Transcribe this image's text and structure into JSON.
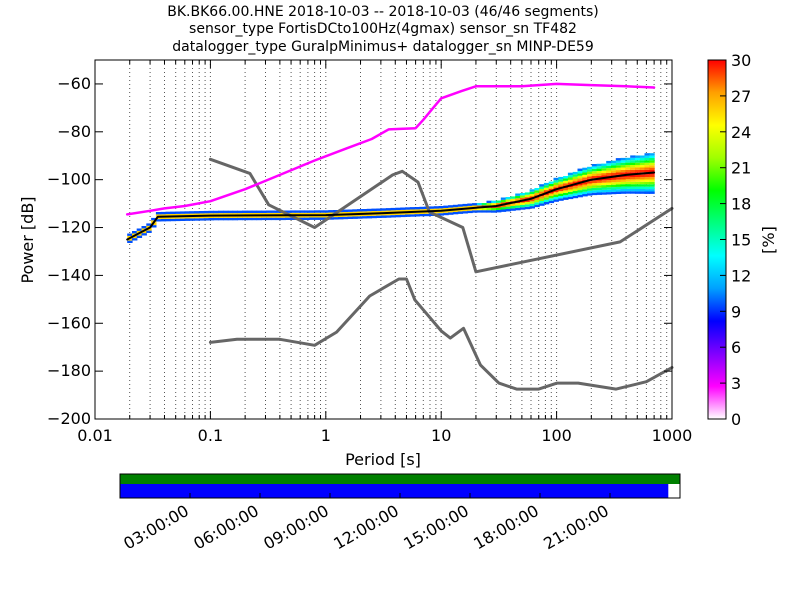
{
  "title_lines": [
    "BK.BK66.00.HNE   2018-10-03 -- 2018-10-03  (46/46 segments)",
    "sensor_type FortisDCto100Hz(4gmax) sensor_sn TF482",
    "datalogger_type GuralpMinimus+ datalogger_sn MINP-DE59"
  ],
  "chart_data": [
    {
      "type": "heatmap",
      "xlabel": "Period [s]",
      "ylabel": "Power [dB]",
      "xscale": "log",
      "xlim": [
        0.01,
        1000
      ],
      "ylim": [
        -200,
        -50
      ],
      "x_tick_labels": [
        "0.01",
        "0.1",
        "1",
        "10",
        "100",
        "1000"
      ],
      "x_tick_values": [
        0.01,
        0.1,
        1,
        10,
        100,
        1000
      ],
      "y_tick_values": [
        -60,
        -80,
        -100,
        -120,
        -140,
        -160,
        -180,
        -200
      ],
      "y_tick_labels": [
        "−60",
        "−80",
        "−100",
        "−120",
        "−140",
        "−160",
        "−180",
        "−200"
      ],
      "grid": "dotted vertical lines at minor log ticks",
      "colorbar": {
        "label": "[%]",
        "range": [
          0,
          30
        ],
        "ticks": [
          "0",
          "3",
          "6",
          "9",
          "12",
          "15",
          "18",
          "21",
          "24",
          "27",
          "30"
        ],
        "colormap": [
          "#ffffff",
          "#ff00ff",
          "#8000ff",
          "#0000ff",
          "#00a0ff",
          "#00ffff",
          "#00ff80",
          "#00ff00",
          "#a0ff00",
          "#ffff00",
          "#ffa000",
          "#ff0000"
        ]
      },
      "series": [
        {
          "role": "noise model upper",
          "color": "#666666",
          "x": [
            0.1,
            0.22,
            0.32,
            0.8,
            3.8,
            4.6,
            6.3,
            7.9,
            15.4,
            20,
            354.8,
            1000
          ],
          "y": [
            -91.5,
            -97.4,
            -110.5,
            -120,
            -98,
            -96.5,
            -101,
            -113.5,
            -120,
            -138.5,
            -126,
            -112
          ]
        },
        {
          "role": "noise model lower",
          "color": "#666666",
          "x": [
            0.1,
            0.17,
            0.4,
            0.8,
            1.24,
            2.4,
            4.3,
            5,
            5.9,
            10,
            12,
            15.6,
            21.9,
            31.6,
            45,
            70,
            101,
            154,
            328,
            600,
            1000
          ],
          "y": [
            -168,
            -166.7,
            -166.7,
            -169.2,
            -163.7,
            -148.6,
            -141.5,
            -141.5,
            -150.2,
            -163.2,
            -166.2,
            -162.1,
            -177.5,
            -185,
            -187.5,
            -187.5,
            -185,
            -185,
            -187.5,
            -184.4,
            -178.5
          ]
        },
        {
          "role": "PSD mode",
          "color": "#000000",
          "x": [
            0.019,
            0.025,
            0.03,
            0.035,
            0.1,
            1,
            3,
            10,
            30,
            60,
            100,
            200,
            400,
            700
          ],
          "y": [
            -125,
            -122,
            -120,
            -115.5,
            -115,
            -114.8,
            -114,
            -113,
            -111,
            -108,
            -104,
            -100,
            -98,
            -97
          ]
        },
        {
          "role": "PSD maximum",
          "color": "#ff00ff",
          "x": [
            0.019,
            0.03,
            0.04,
            0.06,
            0.1,
            0.2,
            0.4,
            0.8,
            1.5,
            2.5,
            3.5,
            6,
            7,
            8.5,
            10,
            15,
            20,
            50,
            100,
            200,
            400,
            700
          ],
          "y": [
            -114.5,
            -113,
            -112,
            -111,
            -109,
            -104,
            -98,
            -92,
            -87,
            -83,
            -79,
            -78.5,
            -75,
            -70,
            -66,
            -63,
            -61,
            -61,
            -60,
            -60.5,
            -61,
            -61.5
          ]
        }
      ]
    },
    {
      "type": "timeline",
      "x_tick_labels": [
        "03:00:00",
        "06:00:00",
        "09:00:00",
        "12:00:00",
        "15:00:00",
        "18:00:00",
        "21:00:00"
      ],
      "x_tick_hours": [
        3,
        6,
        9,
        12,
        15,
        18,
        21
      ],
      "xlim_hours": [
        0,
        24
      ],
      "bars": [
        {
          "color": "#008000",
          "start_hour": 0,
          "end_hour": 24
        },
        {
          "color": "#0000ff",
          "start_hour": 0,
          "end_hour": 23.5
        }
      ]
    }
  ]
}
